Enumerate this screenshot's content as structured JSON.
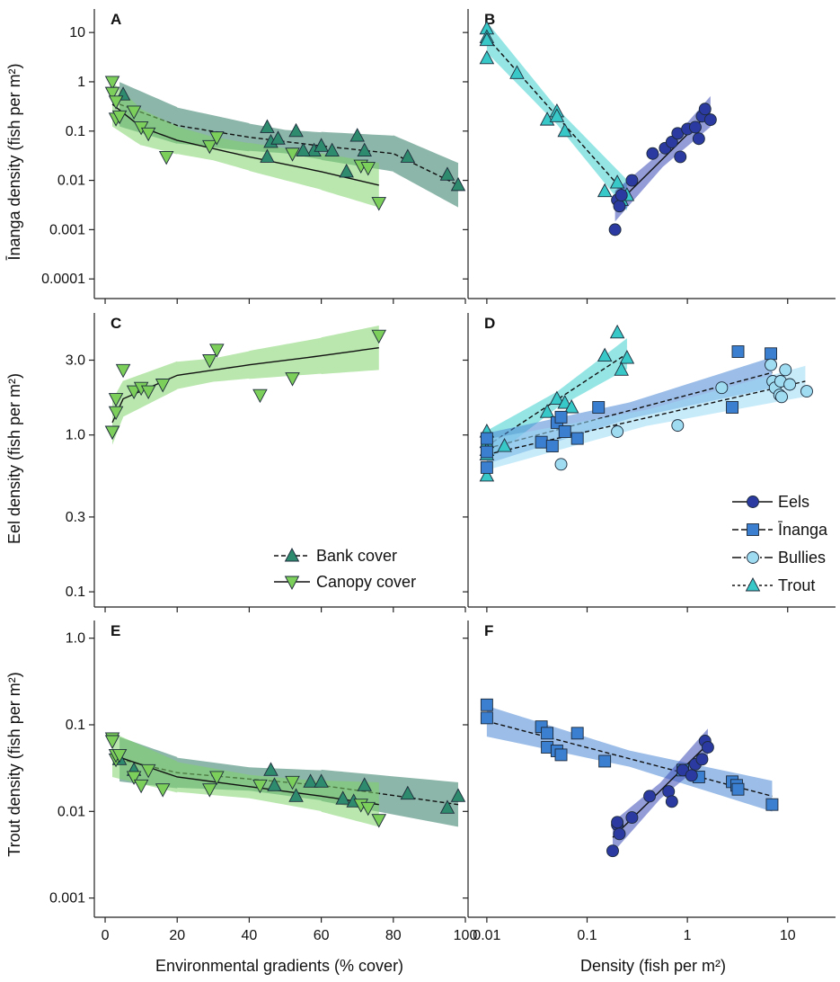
{
  "colors": {
    "bank": "#2e8b6e",
    "bank_band": "#2e7a63",
    "canopy": "#7ccf5a",
    "canopy_band": "#7fd46a",
    "eels": "#2b3aa0",
    "eels_band": "#3a4bb5",
    "inanga": "#3a7fd0",
    "inanga_band": "#4a86d4",
    "bullies": "#9fdcf2",
    "bullies_band": "#9bdaf5",
    "trout": "#38c8c8",
    "trout_band": "#3fcfcf"
  },
  "labels": {
    "x_left": "Environmental gradients (% cover)",
    "x_right": "Density (fish per m²)",
    "y_top": "Īnanga density (fish per m²)",
    "y_mid": "Eel density (fish per m²)",
    "y_bot": "Trout density (fish per m²)",
    "xticks_left": [
      "0",
      "20",
      "40",
      "60",
      "80",
      "100"
    ],
    "xticks_right": [
      "0.01",
      "0.1",
      "1",
      "10"
    ],
    "yticks_top": [
      "10",
      "1",
      "0.1",
      "0.01",
      "0.001",
      "0.0001"
    ],
    "yticks_mid": [
      "3.0",
      "1.0",
      "0.3",
      "0.1"
    ],
    "yticks_bot": [
      "1.0",
      "0.1",
      "0.01",
      "0.001"
    ]
  },
  "legend_left": [
    "Bank cover",
    "Canopy cover"
  ],
  "legend_right": [
    "Eels",
    "Īnanga",
    "Bullies",
    "Trout"
  ],
  "chart_data": [
    {
      "panel": "A",
      "type": "scatter",
      "x_scale": "linear",
      "y_scale": "log",
      "xlim": [
        -3,
        100
      ],
      "ylim": [
        4e-05,
        30
      ],
      "series": [
        {
          "name": "Bank cover",
          "marker": "triangle-up",
          "line": "dashed",
          "x": [
            5,
            45,
            46,
            48,
            53,
            58,
            60,
            70,
            72,
            84,
            95,
            98,
            45,
            55,
            63,
            67
          ],
          "y": [
            0.55,
            0.12,
            0.06,
            0.07,
            0.1,
            0.04,
            0.05,
            0.08,
            0.04,
            0.03,
            0.013,
            0.008,
            0.03,
            0.04,
            0.04,
            0.015
          ],
          "fit": [
            [
              4,
              0.35
            ],
            [
              20,
              0.13
            ],
            [
              40,
              0.075
            ],
            [
              60,
              0.05
            ],
            [
              80,
              0.035
            ],
            [
              98,
              0.008
            ]
          ]
        },
        {
          "name": "Canopy cover",
          "marker": "triangle-down",
          "line": "solid",
          "x": [
            2,
            2,
            3,
            3,
            4,
            8,
            10,
            12,
            17,
            29,
            31,
            52,
            71,
            73,
            76
          ],
          "y": [
            1.0,
            0.6,
            0.4,
            0.18,
            0.2,
            0.25,
            0.12,
            0.09,
            0.03,
            0.05,
            0.075,
            0.035,
            0.02,
            0.018,
            0.0035
          ],
          "fit": [
            [
              2,
              0.35
            ],
            [
              10,
              0.12
            ],
            [
              20,
              0.065
            ],
            [
              40,
              0.03
            ],
            [
              60,
              0.015
            ],
            [
              76,
              0.008
            ]
          ]
        }
      ]
    },
    {
      "panel": "B",
      "type": "scatter",
      "x_scale": "log",
      "y_scale": "log",
      "xlim": [
        0.0065,
        30
      ],
      "ylim": [
        4e-05,
        30
      ],
      "series": [
        {
          "name": "Trout",
          "marker": "triangle-up",
          "x": [
            0.01,
            0.01,
            0.01,
            0.01,
            0.02,
            0.04,
            0.05,
            0.06,
            0.05,
            0.15,
            0.2,
            0.22,
            0.25
          ],
          "y": [
            12,
            8,
            7,
            3,
            1.5,
            0.17,
            0.25,
            0.1,
            0.2,
            0.006,
            0.009,
            0.004,
            0.005
          ],
          "fit": [
            [
              0.01,
              8
            ],
            [
              0.25,
              0.005
            ]
          ]
        },
        {
          "name": "Eels",
          "marker": "circle",
          "x": [
            0.19,
            0.2,
            0.21,
            0.22,
            0.28,
            0.45,
            0.6,
            0.7,
            0.8,
            0.85,
            1.0,
            1.2,
            1.4,
            1.5,
            1.7,
            1.3
          ],
          "y": [
            0.001,
            0.004,
            0.003,
            0.005,
            0.01,
            0.035,
            0.045,
            0.06,
            0.09,
            0.03,
            0.11,
            0.12,
            0.2,
            0.28,
            0.17,
            0.07
          ],
          "fit": [
            [
              0.19,
              0.003
            ],
            [
              1.7,
              0.25
            ]
          ]
        }
      ]
    },
    {
      "panel": "C",
      "type": "scatter",
      "x_scale": "linear",
      "y_scale": "log",
      "xlim": [
        -3,
        100
      ],
      "ylim": [
        0.08,
        6
      ],
      "series": [
        {
          "name": "Canopy cover",
          "marker": "triangle-down",
          "x": [
            2,
            2,
            3,
            3,
            5,
            8,
            10,
            12,
            16,
            29,
            31,
            43,
            52,
            76
          ],
          "y": [
            1.05,
            1.05,
            1.4,
            1.7,
            2.6,
            1.9,
            2.0,
            1.9,
            2.1,
            3.0,
            3.5,
            1.8,
            2.3,
            4.3
          ],
          "fit": [
            [
              2,
              1.2
            ],
            [
              5,
              1.7
            ],
            [
              20,
              2.4
            ],
            [
              40,
              2.8
            ],
            [
              60,
              3.2
            ],
            [
              76,
              3.6
            ]
          ]
        }
      ]
    },
    {
      "panel": "D",
      "type": "scatter",
      "x_scale": "log",
      "y_scale": "log",
      "xlim": [
        0.0065,
        30
      ],
      "ylim": [
        0.08,
        6
      ],
      "series": [
        {
          "name": "Trout",
          "marker": "triangle-up",
          "x": [
            0.01,
            0.01,
            0.01,
            0.01,
            0.01,
            0.015,
            0.04,
            0.05,
            0.06,
            0.07,
            0.15,
            0.2,
            0.25,
            0.22
          ],
          "y": [
            1.05,
            0.9,
            0.8,
            0.75,
            0.55,
            0.85,
            1.4,
            1.7,
            1.6,
            1.5,
            3.2,
            4.5,
            3.1,
            2.6
          ],
          "fit": [
            [
              0.01,
              0.85
            ],
            [
              0.25,
              3.3
            ]
          ]
        },
        {
          "name": "Īnanga",
          "marker": "square",
          "x": [
            0.01,
            0.01,
            0.01,
            0.035,
            0.045,
            0.05,
            0.055,
            0.06,
            0.08,
            0.13,
            2.8,
            3.2,
            6.8
          ],
          "y": [
            0.95,
            0.78,
            0.62,
            0.9,
            0.85,
            1.2,
            1.3,
            1.05,
            0.95,
            1.5,
            1.5,
            3.4,
            3.3
          ],
          "fit": [
            [
              0.01,
              0.82
            ],
            [
              7,
              2.5
            ]
          ]
        },
        {
          "name": "Bullies",
          "marker": "circle",
          "x": [
            0.055,
            0.2,
            0.8,
            2.2,
            6.8,
            7.1,
            7.5,
            8.5,
            8.3,
            8.7,
            9.5,
            10.5,
            15.5
          ],
          "y": [
            0.65,
            1.05,
            1.15,
            2.0,
            2.8,
            2.2,
            2.0,
            2.2,
            1.8,
            1.75,
            2.6,
            2.1,
            1.9
          ],
          "fit": [
            [
              0.01,
              0.75
            ],
            [
              15,
              2.2
            ]
          ]
        }
      ]
    },
    {
      "panel": "E",
      "type": "scatter",
      "x_scale": "linear",
      "y_scale": "log",
      "xlim": [
        -3,
        100
      ],
      "ylim": [
        0.0006,
        1.6
      ],
      "series": [
        {
          "name": "Bank cover",
          "marker": "triangle-up",
          "line": "dashed",
          "x": [
            4,
            8,
            46,
            47,
            53,
            57,
            60,
            66,
            69,
            72,
            84,
            95,
            98
          ],
          "y": [
            0.04,
            0.03,
            0.03,
            0.02,
            0.015,
            0.022,
            0.022,
            0.014,
            0.013,
            0.02,
            0.016,
            0.011,
            0.015
          ],
          "fit": [
            [
              4,
              0.04
            ],
            [
              20,
              0.028
            ],
            [
              60,
              0.02
            ],
            [
              98,
              0.012
            ]
          ]
        },
        {
          "name": "Canopy cover",
          "marker": "triangle-down",
          "line": "solid",
          "x": [
            2,
            2,
            3,
            3,
            4,
            8,
            10,
            12,
            16,
            29,
            31,
            43,
            52,
            71,
            73,
            76
          ],
          "y": [
            0.07,
            0.065,
            0.04,
            0.045,
            0.045,
            0.025,
            0.02,
            0.03,
            0.018,
            0.018,
            0.025,
            0.02,
            0.022,
            0.012,
            0.011,
            0.008
          ],
          "fit": [
            [
              2,
              0.045
            ],
            [
              20,
              0.025
            ],
            [
              60,
              0.015
            ],
            [
              76,
              0.012
            ]
          ]
        }
      ]
    },
    {
      "panel": "F",
      "type": "scatter",
      "x_scale": "log",
      "y_scale": "log",
      "xlim": [
        0.0065,
        30
      ],
      "ylim": [
        0.0006,
        1.6
      ],
      "series": [
        {
          "name": "Īnanga",
          "marker": "square",
          "x": [
            0.01,
            0.01,
            0.035,
            0.04,
            0.04,
            0.05,
            0.055,
            0.08,
            0.15,
            0.9,
            1.3,
            2.8,
            3.1,
            3.2,
            7
          ],
          "y": [
            0.17,
            0.12,
            0.095,
            0.08,
            0.055,
            0.05,
            0.045,
            0.08,
            0.038,
            0.03,
            0.025,
            0.022,
            0.02,
            0.018,
            0.012
          ],
          "fit": [
            [
              0.01,
              0.11
            ],
            [
              7,
              0.015
            ]
          ]
        },
        {
          "name": "Eels",
          "marker": "circle",
          "x": [
            0.18,
            0.2,
            0.21,
            0.2,
            0.28,
            0.42,
            0.65,
            0.7,
            0.9,
            1.1,
            1.2,
            1.4,
            1.5,
            1.6
          ],
          "y": [
            0.0035,
            0.007,
            0.0055,
            0.0075,
            0.0085,
            0.015,
            0.017,
            0.013,
            0.03,
            0.026,
            0.035,
            0.04,
            0.065,
            0.055
          ],
          "fit": [
            [
              0.18,
              0.005
            ],
            [
              1.6,
              0.06
            ]
          ]
        }
      ]
    }
  ]
}
